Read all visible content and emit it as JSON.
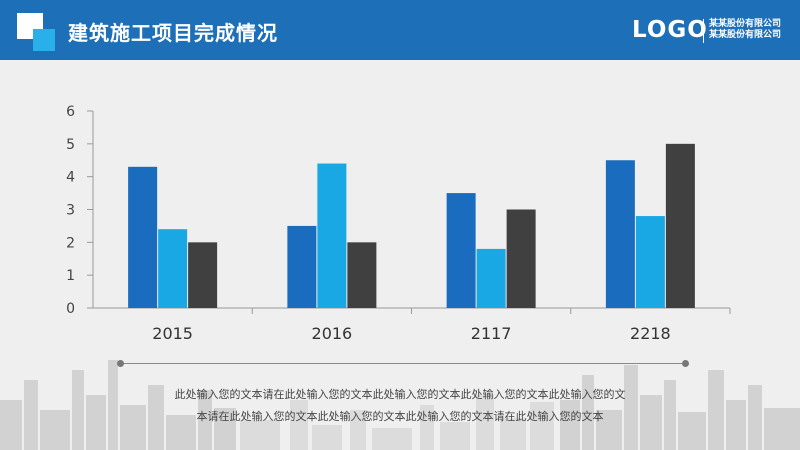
{
  "header": {
    "title": "建筑施工项目完成情况",
    "logo": "LOGO",
    "company_line1": "某某股份有限公司",
    "company_line2": "某某股份有限公司"
  },
  "caption": {
    "line1": "此处输入您的文本请在此处输入您的文本此处输入您的文本此处输入您的文本此处输入您的文",
    "line2": "本请在此处输入您的文本此处输入您的文本此处输入您的文本请在此处输入您的文本"
  },
  "colors": {
    "header_bg": "#1d6fb8",
    "series1": "#1a6dbe",
    "series2": "#19a8e4",
    "series3": "#404040"
  },
  "chart_data": {
    "type": "bar",
    "categories": [
      "2015",
      "2016",
      "2117",
      "2218"
    ],
    "series": [
      {
        "values": [
          4.3,
          2.5,
          3.5,
          4.5
        ]
      },
      {
        "values": [
          2.4,
          4.4,
          1.8,
          2.8
        ]
      },
      {
        "values": [
          2.0,
          2.0,
          3.0,
          5.0
        ]
      }
    ],
    "ylim": [
      0,
      6
    ],
    "yticks": [
      0,
      1,
      2,
      3,
      4,
      5,
      6
    ],
    "title": "",
    "xlabel": "",
    "ylabel": "",
    "grid": false,
    "legend": "none"
  }
}
